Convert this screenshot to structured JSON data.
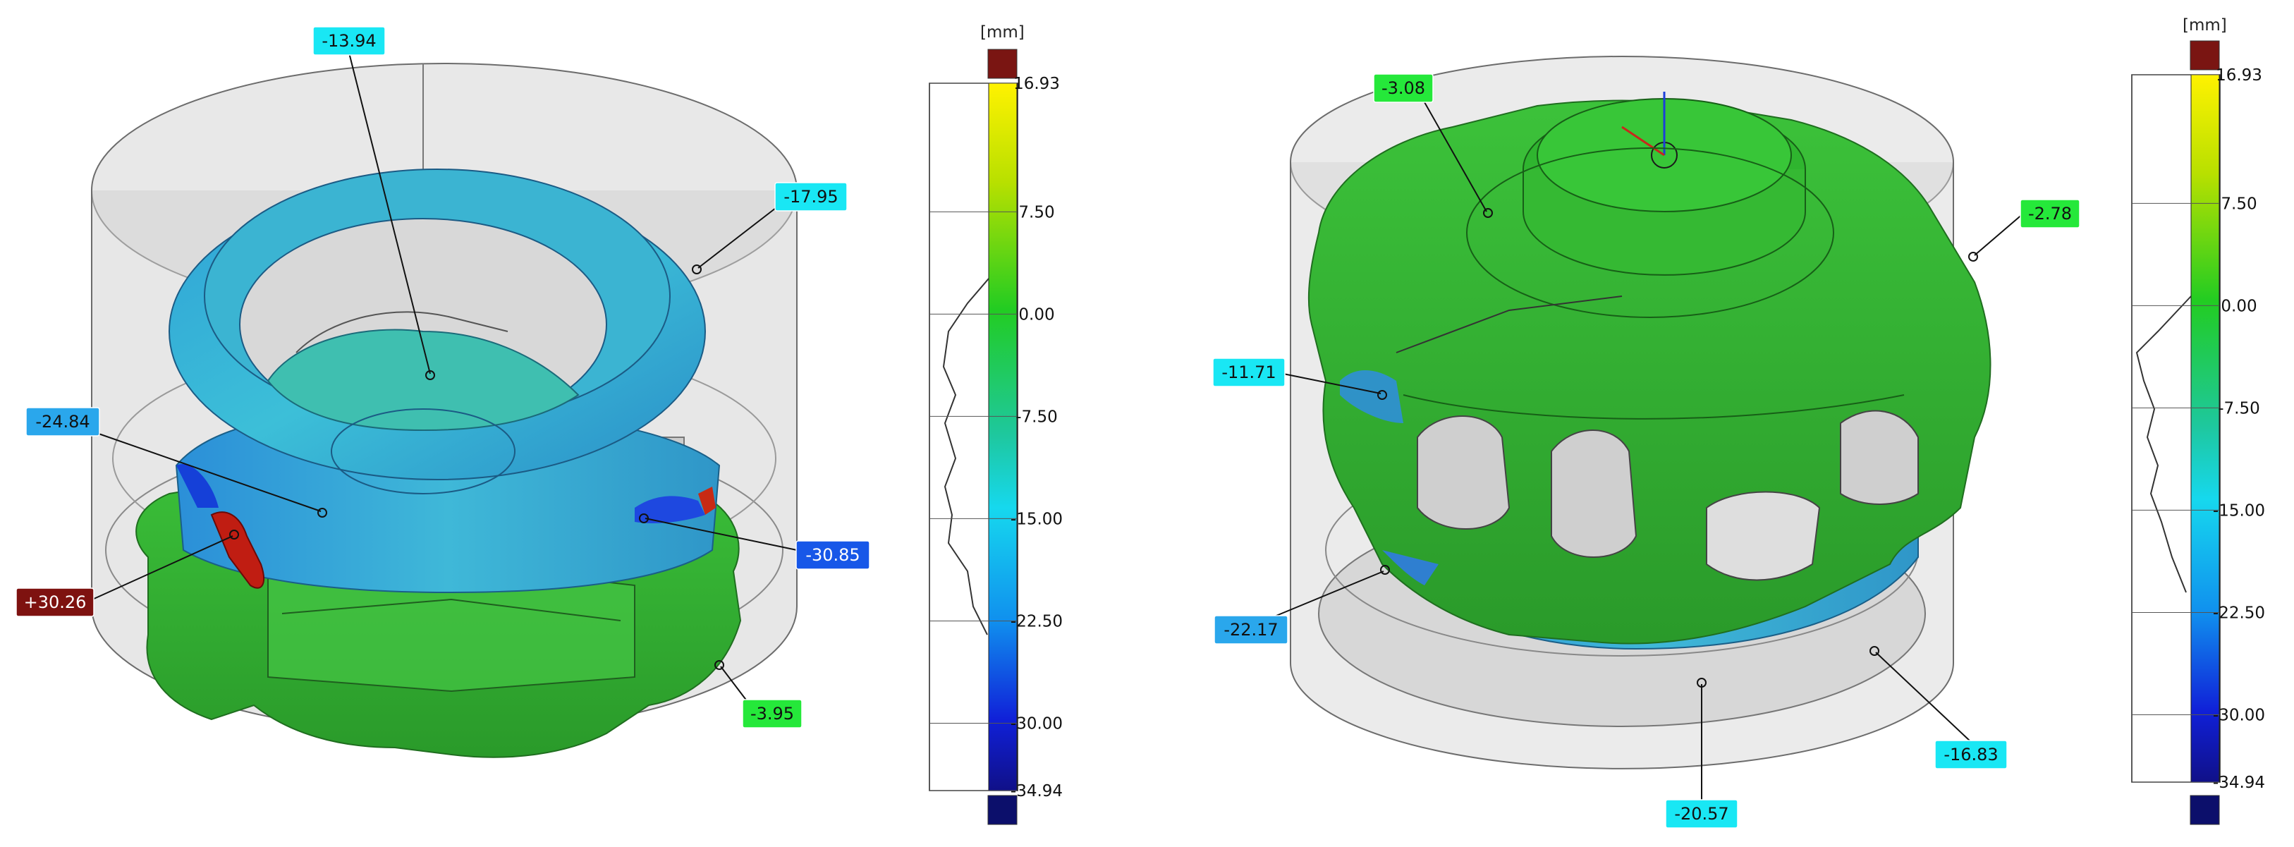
{
  "panels": [
    {
      "unit": "[mm]",
      "scale": {
        "max": 16.93,
        "min": -34.94
      },
      "ticks": [
        "16.93",
        "7.50",
        "0.00",
        "-7.50",
        "-15.00",
        "-22.50",
        "-30.00",
        "-34.94"
      ],
      "callouts": [
        "-13.94",
        "-17.95",
        "-24.84",
        "-30.85",
        "+30.26",
        "-3.95"
      ]
    },
    {
      "unit": "[mm]",
      "scale": {
        "max": 16.93,
        "min": -34.94
      },
      "ticks": [
        "16.93",
        "7.50",
        "0.00",
        "-7.50",
        "-15.00",
        "-22.50",
        "-30.00",
        "-34.94"
      ],
      "callouts": [
        "-3.08",
        "-2.78",
        "-11.71",
        "-22.17",
        "-16.83",
        "-20.57"
      ]
    }
  ],
  "colors": {
    "over_range": "#7a1512",
    "under_range": "#0c0f6b",
    "gradient": [
      "#fff200",
      "#b8e000",
      "#22cc22",
      "#1ec8a0",
      "#16d8ee",
      "#1090ee",
      "#1020d8",
      "#101088"
    ],
    "callout_fills": {
      "cyan": "#19e7f4",
      "light_blue": "#2aa7ec",
      "blue": "#1757e8",
      "dark_red": "#7e1210",
      "green": "#25e83a"
    },
    "mesh_green": "#2fae2c",
    "mesh_teal": "#2aa6c4",
    "ghost_gray": "#c8c8c8"
  }
}
